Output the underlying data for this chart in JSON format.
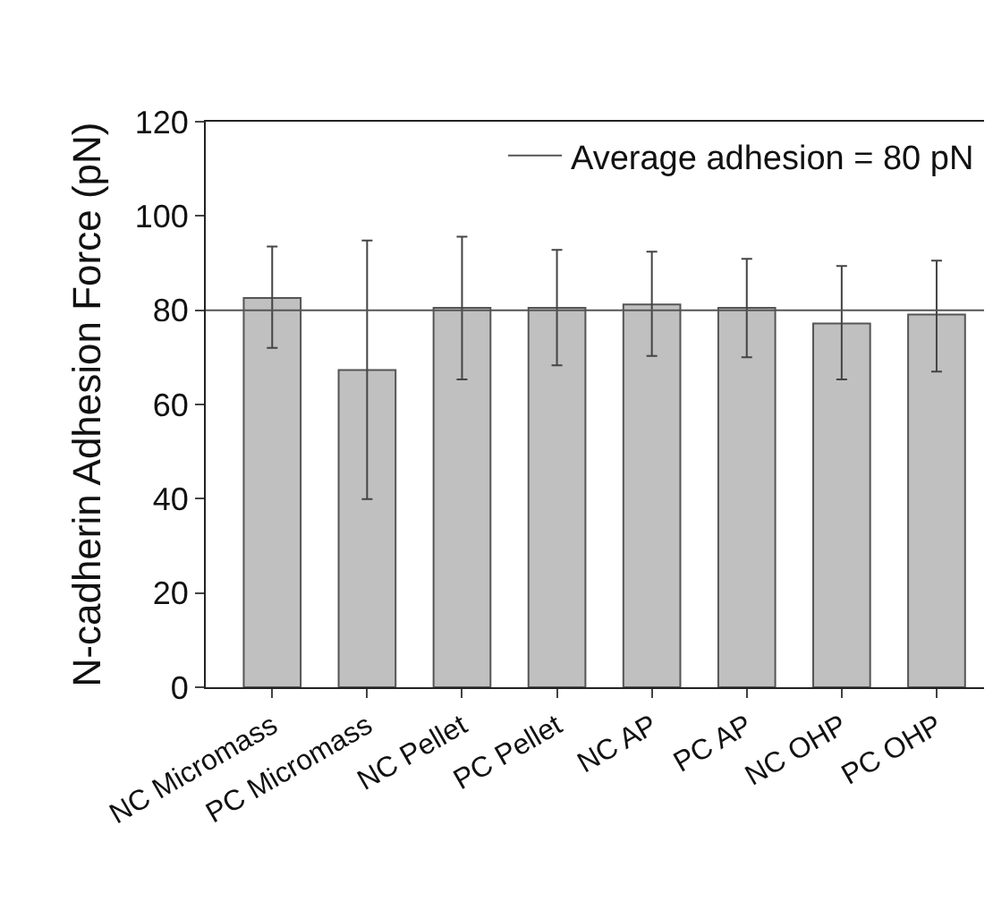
{
  "chart_data": {
    "type": "bar",
    "ylabel": "N-cadherin Adhesion Force (pN)",
    "categories": [
      "NC Micromass",
      "PC Micromass",
      "NC Pellet",
      "PC Pellet",
      "NC AP",
      "PC AP",
      "NC OHP",
      "PC OHP"
    ],
    "values": [
      82.6,
      67.3,
      80.5,
      80.5,
      81.2,
      80.5,
      77.2,
      79.1
    ],
    "errors": [
      [
        72.0,
        93.5
      ],
      [
        39.9,
        94.8
      ],
      [
        65.3,
        95.6
      ],
      [
        68.3,
        92.8
      ],
      [
        70.3,
        92.4
      ],
      [
        70.0,
        90.9
      ],
      [
        65.3,
        89.4
      ],
      [
        67.0,
        90.5
      ]
    ],
    "color": "#c0c0c0",
    "ylim": [
      0,
      120
    ],
    "yticks": [
      0,
      20,
      40,
      60,
      80,
      100,
      120
    ],
    "grid": false,
    "ref_lines": [
      {
        "axis": "y",
        "value": 80,
        "label": "Average adhesion = 80 pN",
        "color": "#555555",
        "line_style": "solid"
      }
    ],
    "legend": "top right"
  }
}
